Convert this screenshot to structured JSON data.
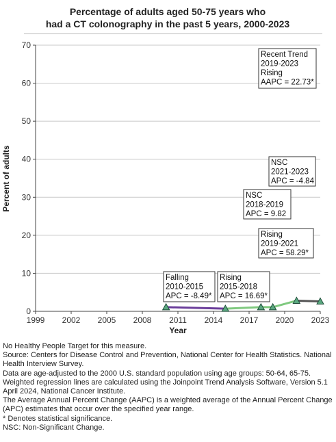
{
  "chart_data": {
    "type": "line",
    "title_lines": [
      "Percentage of adults aged 50-75 years who",
      "had a CT colonography in the past 5 years, 2000-2023"
    ],
    "xlabel": "Year",
    "ylabel": "Percent of adults",
    "xlim": [
      1999,
      2023
    ],
    "ylim": [
      0,
      70
    ],
    "x_ticks": [
      1999,
      2002,
      2005,
      2008,
      2011,
      2014,
      2017,
      2020,
      2023
    ],
    "y_ticks": [
      0,
      10,
      20,
      30,
      40,
      50,
      60,
      70
    ],
    "grid": "horizontal",
    "series": [
      {
        "color": "#cccccc",
        "marker": "triangle",
        "x": [
          2010,
          2015,
          2018,
          2019,
          2021,
          2023
        ],
        "values": [
          1.1,
          0.7,
          1.1,
          1.1,
          2.8,
          2.6
        ]
      }
    ],
    "trend_segments": [
      {
        "x": [
          2010,
          2015
        ],
        "y": [
          1.1,
          0.7
        ],
        "color": "#6a3d9a"
      },
      {
        "x": [
          2015,
          2018
        ],
        "y": [
          0.7,
          1.1
        ],
        "color": "#7fc97f"
      },
      {
        "x": [
          2018,
          2019
        ],
        "y": [
          1.1,
          1.1
        ],
        "color": "#7fc97f"
      },
      {
        "x": [
          2019,
          2021
        ],
        "y": [
          1.1,
          2.8
        ],
        "color": "#7fc97f"
      },
      {
        "x": [
          2021,
          2023
        ],
        "y": [
          2.8,
          2.6
        ],
        "color": "#555555"
      }
    ],
    "annotations": [
      {
        "lines": [
          "Recent Trend",
          "2019-2023",
          "Rising",
          "AAPC = 22.73*"
        ]
      },
      {
        "lines": [
          "NSC",
          "2021-2023",
          "APC = -4.84"
        ]
      },
      {
        "lines": [
          "NSC",
          "2018-2019",
          "APC =  9.82"
        ]
      },
      {
        "lines": [
          "Rising",
          "2019-2021",
          "APC = 58.29*"
        ]
      },
      {
        "lines": [
          "Falling",
          "2010-2015",
          "APC = -8.49*"
        ]
      },
      {
        "lines": [
          "Rising",
          "2015-2018",
          "APC = 16.69*"
        ]
      }
    ]
  },
  "notes": [
    "No Healthy People Target for this measure.",
    "Source: Centers for Disease Control and Prevention, National Center for Health Statistics. National Health Interview Survey.",
    "Data are age-adjusted to the 2000 U.S. standard population using age groups: 50-64, 65-75.",
    "Weighted regression lines are calculated using the Joinpoint Trend Analysis Software, Version 5.1 April 2024, National Cancer Institute.",
    "The Average Annual Percent Change (AAPC) is a weighted average of the Annual Percent Change (APC) estimates that occur over the specified year range.",
    "* Denotes statistical significance.",
    "NSC: Non-Significant Change."
  ]
}
